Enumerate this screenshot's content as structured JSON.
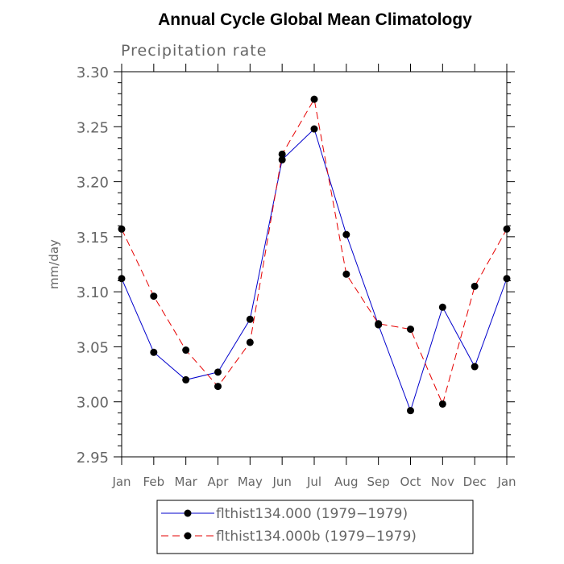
{
  "chart_data": {
    "type": "line",
    "title": "Annual Cycle Global Mean Climatology",
    "subtitle": "Precipitation rate",
    "ylabel": "mm/day",
    "xlabel": "",
    "categories": [
      "Jan",
      "Feb",
      "Mar",
      "Apr",
      "May",
      "Jun",
      "Jul",
      "Aug",
      "Sep",
      "Oct",
      "Nov",
      "Dec",
      "Jan"
    ],
    "ylim": [
      2.95,
      3.3
    ],
    "yticks": [
      "2.95",
      "3.00",
      "3.05",
      "3.10",
      "3.15",
      "3.20",
      "3.25",
      "3.30"
    ],
    "grid": false,
    "legend_position": "bottom",
    "series": [
      {
        "name": "flthist134.000 (1979−1979)",
        "color": "#0000cc",
        "dash": "solid",
        "values": [
          3.112,
          3.045,
          3.02,
          3.027,
          3.075,
          3.22,
          3.248,
          3.152,
          3.07,
          2.992,
          3.086,
          3.032,
          3.112
        ]
      },
      {
        "name": "flthist134.000b (1979−1979)",
        "color": "#e60000",
        "dash": "dashed",
        "values": [
          3.157,
          3.096,
          3.047,
          3.014,
          3.054,
          3.225,
          3.275,
          3.116,
          3.071,
          3.066,
          2.998,
          3.105,
          3.157
        ]
      }
    ]
  }
}
